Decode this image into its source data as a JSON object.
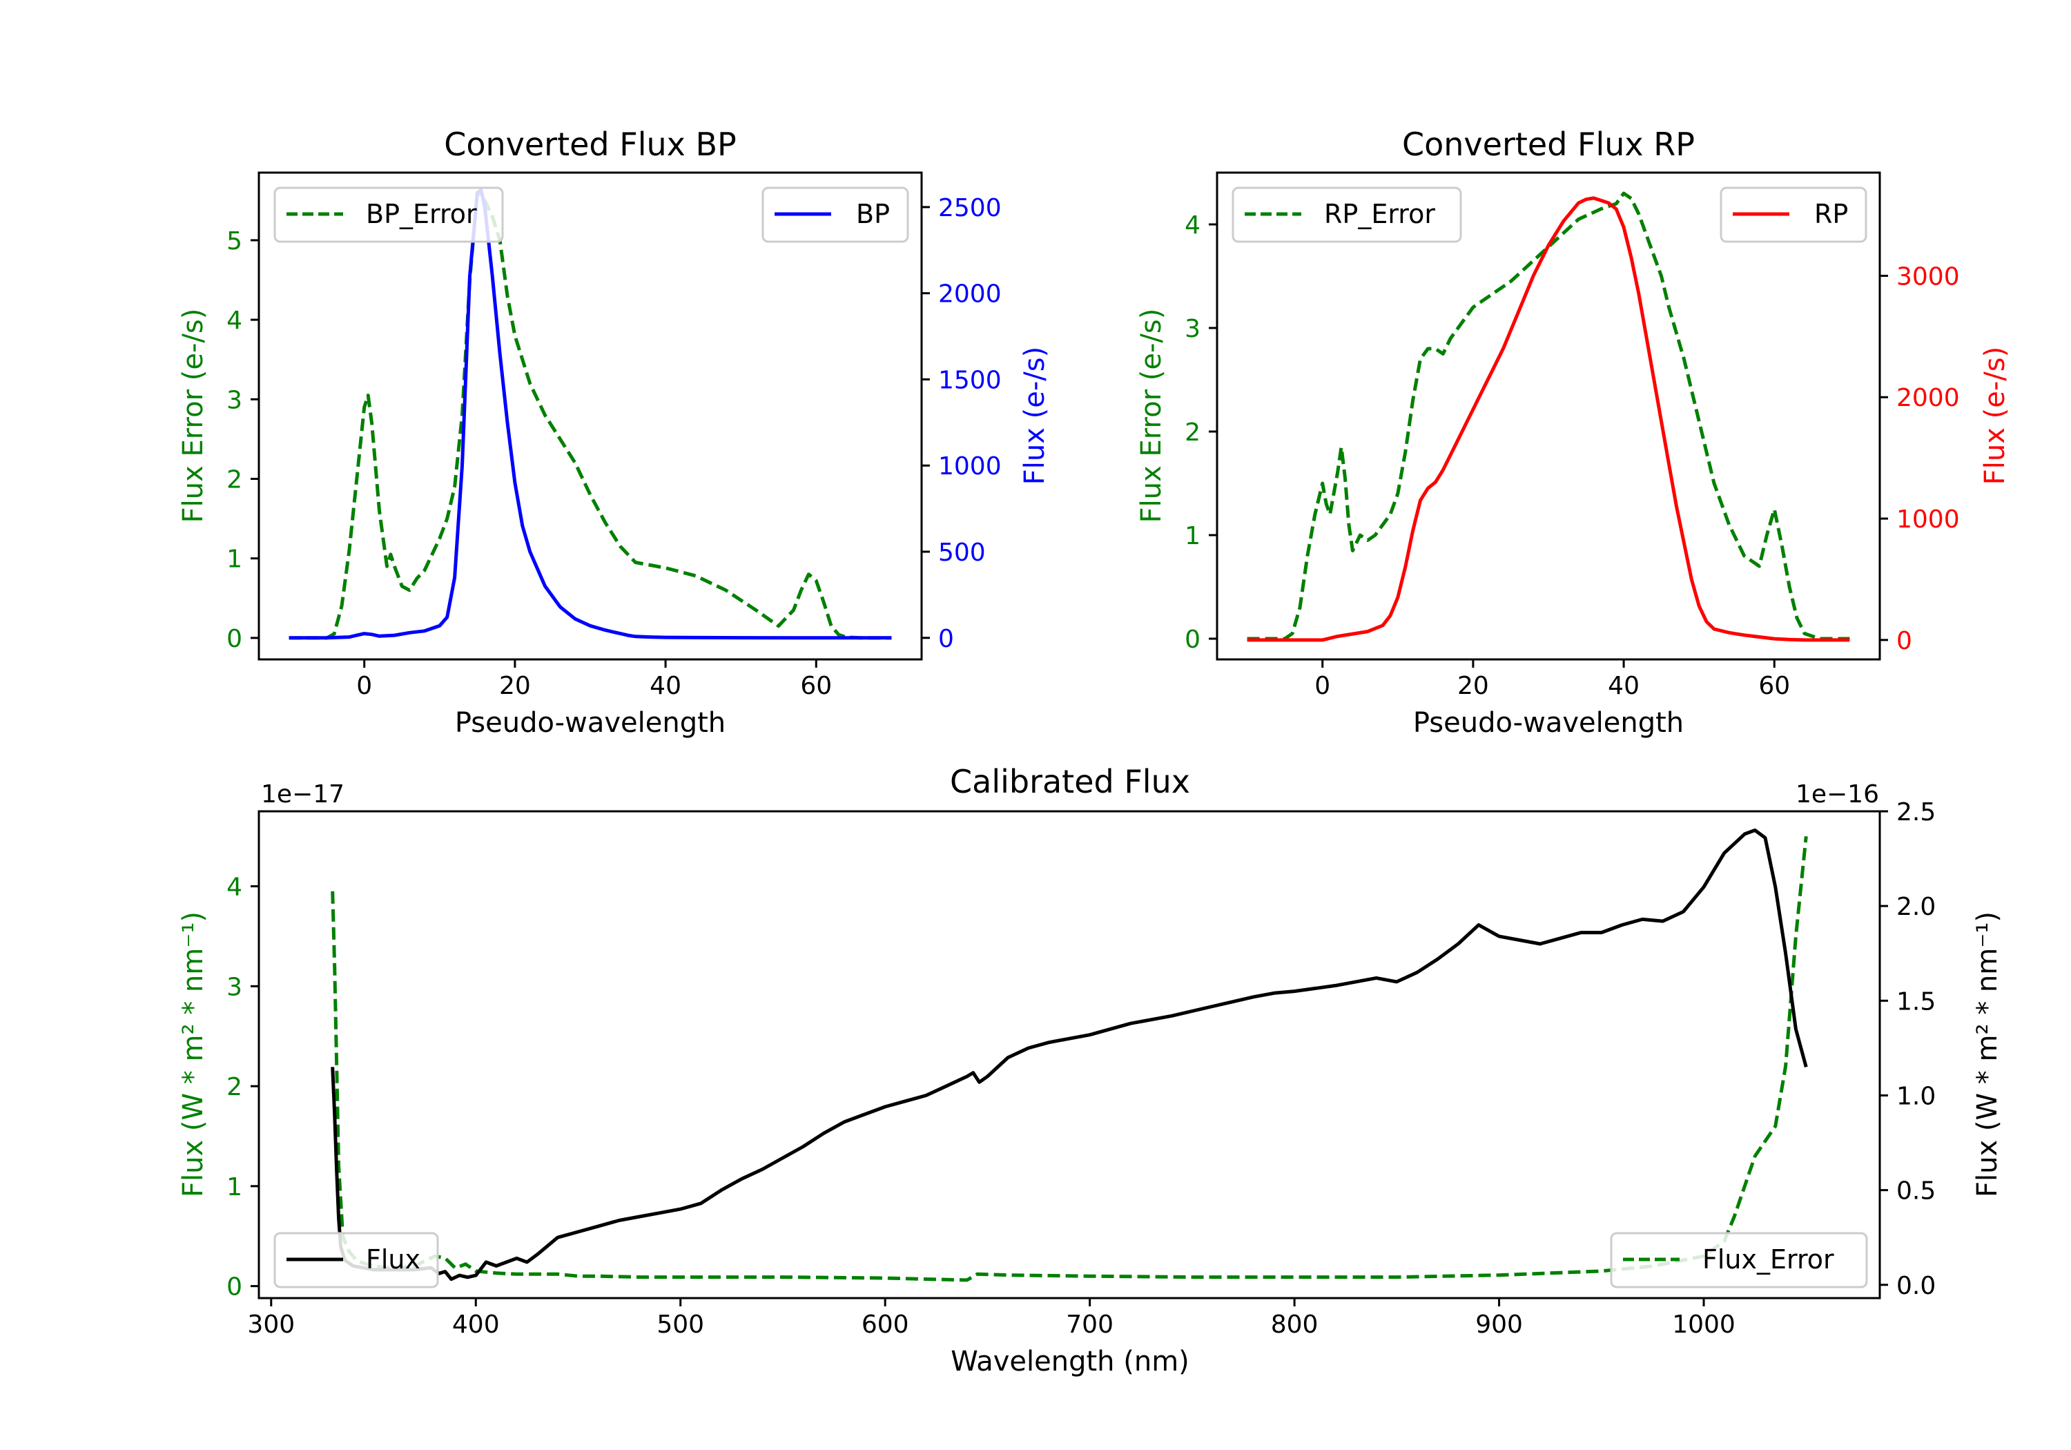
{
  "colors": {
    "bp": "#0000ff",
    "rp": "#ff0000",
    "error": "#008000",
    "flux": "#000000",
    "axes": "#000000",
    "legend_border": "#cccccc"
  },
  "chart_data": [
    {
      "id": "bp",
      "type": "line",
      "title": "Converted Flux BP",
      "xlabel": "Pseudo-wavelength",
      "ylabel_left": "Flux Error (e-/s)",
      "ylabel_right": "Flux (e-/s)",
      "xlim": [
        -14,
        74
      ],
      "ylim_left": [
        -0.27,
        5.85
      ],
      "ylim_right": [
        -125,
        2700
      ],
      "xticks": [
        0,
        20,
        40,
        60
      ],
      "xtick_labels": [
        "0",
        "20",
        "40",
        "60"
      ],
      "yticks_left": [
        0,
        1,
        2,
        3,
        4,
        5
      ],
      "ytick_labels_left": [
        "0",
        "1",
        "2",
        "3",
        "4",
        "5"
      ],
      "yticks_right": [
        0,
        500,
        1000,
        1500,
        2000,
        2500
      ],
      "ytick_labels_right": [
        "0",
        "500",
        "1000",
        "1500",
        "2000",
        "2500"
      ],
      "legend_left": "BP_Error",
      "legend_right": "BP",
      "series": [
        {
          "name": "BP_Error",
          "axis": "left",
          "style": "dashed",
          "color_key": "error",
          "x": [
            -10,
            -5,
            -4,
            -3,
            -2,
            -1,
            0,
            0.5,
            1,
            2,
            3,
            3.5,
            4,
            5,
            6,
            7,
            8,
            9,
            10,
            11,
            12,
            13,
            14,
            15,
            16,
            17,
            18,
            19,
            20,
            21,
            22,
            24,
            26,
            28,
            30,
            32,
            34,
            36,
            40,
            44,
            48,
            52,
            55,
            57,
            58,
            59,
            60,
            61,
            62,
            63,
            64,
            66,
            68,
            70
          ],
          "y": [
            0,
            0,
            0.05,
            0.4,
            1.1,
            2.0,
            2.9,
            3.05,
            2.7,
            1.6,
            0.9,
            1.05,
            0.9,
            0.65,
            0.6,
            0.75,
            0.85,
            1.05,
            1.25,
            1.5,
            1.9,
            2.8,
            4.5,
            5.6,
            5.5,
            5.3,
            5.0,
            4.3,
            3.8,
            3.5,
            3.2,
            2.8,
            2.5,
            2.2,
            1.8,
            1.45,
            1.15,
            0.95,
            0.88,
            0.78,
            0.6,
            0.35,
            0.15,
            0.35,
            0.6,
            0.8,
            0.72,
            0.45,
            0.15,
            0.04,
            0.01,
            0,
            0,
            0
          ]
        },
        {
          "name": "BP",
          "axis": "right",
          "style": "solid",
          "color_key": "bp",
          "x": [
            -10,
            -5,
            -2,
            0,
            1,
            2,
            4,
            6,
            8,
            10,
            11,
            12,
            13,
            14,
            15,
            15.5,
            16,
            17,
            18,
            19,
            20,
            21,
            22,
            24,
            26,
            28,
            30,
            32,
            34,
            35,
            36,
            38,
            40,
            50,
            60,
            70
          ],
          "y": [
            0,
            0,
            5,
            25,
            20,
            10,
            15,
            30,
            40,
            70,
            120,
            350,
            1000,
            2100,
            2580,
            2600,
            2500,
            2100,
            1650,
            1250,
            900,
            650,
            500,
            300,
            180,
            110,
            70,
            45,
            25,
            15,
            8,
            5,
            3,
            1,
            0,
            0
          ]
        }
      ]
    },
    {
      "id": "rp",
      "type": "line",
      "title": "Converted Flux RP",
      "xlabel": "Pseudo-wavelength",
      "ylabel_left": "Flux Error (e-/s)",
      "ylabel_right": "Flux (e-/s)",
      "xlim": [
        -14,
        74
      ],
      "ylim_left": [
        -0.2,
        4.5
      ],
      "ylim_right": [
        -160,
        3850
      ],
      "xticks": [
        0,
        20,
        40,
        60
      ],
      "xtick_labels": [
        "0",
        "20",
        "40",
        "60"
      ],
      "yticks_left": [
        0,
        1,
        2,
        3,
        4
      ],
      "ytick_labels_left": [
        "0",
        "1",
        "2",
        "3",
        "4"
      ],
      "yticks_right": [
        0,
        1000,
        2000,
        3000
      ],
      "ytick_labels_right": [
        "0",
        "1000",
        "2000",
        "3000"
      ],
      "legend_left": "RP_Error",
      "legend_right": "RP",
      "series": [
        {
          "name": "RP_Error",
          "axis": "left",
          "style": "dashed",
          "color_key": "error",
          "x": [
            -10,
            -5,
            -4,
            -3,
            -2,
            -1,
            0,
            0.5,
            1,
            2,
            2.5,
            3,
            3.5,
            4,
            5,
            6,
            7,
            8,
            9,
            10,
            11,
            12,
            13,
            14,
            15,
            16,
            17,
            18,
            19,
            20,
            22,
            25,
            28,
            31,
            34,
            37,
            39,
            40,
            41,
            42,
            43,
            44,
            45,
            46,
            48,
            50,
            52,
            54,
            56,
            57,
            58,
            59,
            60,
            61,
            62,
            63,
            64,
            66,
            68,
            70
          ],
          "y": [
            0,
            0,
            0.05,
            0.3,
            0.8,
            1.2,
            1.5,
            1.3,
            1.2,
            1.6,
            1.85,
            1.55,
            1.1,
            0.85,
            1.0,
            0.95,
            1.0,
            1.1,
            1.2,
            1.4,
            1.8,
            2.3,
            2.7,
            2.8,
            2.8,
            2.75,
            2.9,
            3.0,
            3.1,
            3.2,
            3.3,
            3.45,
            3.65,
            3.85,
            4.05,
            4.15,
            4.2,
            4.3,
            4.25,
            4.1,
            3.9,
            3.7,
            3.5,
            3.2,
            2.7,
            2.1,
            1.5,
            1.1,
            0.8,
            0.75,
            0.7,
            1.0,
            1.25,
            0.9,
            0.5,
            0.2,
            0.05,
            0,
            0,
            0
          ]
        },
        {
          "name": "RP",
          "axis": "right",
          "style": "solid",
          "color_key": "rp",
          "x": [
            -10,
            -5,
            0,
            2,
            4,
            6,
            8,
            9,
            10,
            11,
            12,
            13,
            14,
            15,
            16,
            18,
            20,
            22,
            24,
            26,
            28,
            30,
            32,
            34,
            35,
            36,
            37,
            38,
            39,
            40,
            41,
            42,
            43,
            44,
            45,
            46,
            47,
            48,
            49,
            50,
            51,
            52,
            54,
            56,
            58,
            60,
            62,
            64,
            70
          ],
          "y": [
            0,
            0,
            0,
            30,
            50,
            70,
            120,
            200,
            350,
            600,
            900,
            1150,
            1250,
            1300,
            1400,
            1650,
            1900,
            2150,
            2400,
            2700,
            3000,
            3250,
            3450,
            3600,
            3630,
            3640,
            3620,
            3600,
            3550,
            3400,
            3150,
            2850,
            2500,
            2150,
            1800,
            1450,
            1100,
            800,
            500,
            280,
            150,
            90,
            60,
            40,
            25,
            10,
            3,
            0,
            0
          ]
        }
      ]
    },
    {
      "id": "cal",
      "type": "line",
      "title": "Calibrated Flux",
      "xlabel": "Wavelength (nm)",
      "ylabel_left": "Flux (W * m² * nm⁻¹)",
      "ylabel_right": "Flux (W * m² * nm⁻¹)",
      "offset_left": "1e−17",
      "offset_right": "1e−16",
      "xlim": [
        294,
        1086
      ],
      "ylim_left": [
        -0.12,
        4.75
      ],
      "ylim_right": [
        -0.07,
        2.5
      ],
      "xticks": [
        300,
        400,
        500,
        600,
        700,
        800,
        900,
        1000
      ],
      "xtick_labels": [
        "300",
        "400",
        "500",
        "600",
        "700",
        "800",
        "900",
        "1000"
      ],
      "yticks_left": [
        0,
        1,
        2,
        3,
        4
      ],
      "ytick_labels_left": [
        "0",
        "1",
        "2",
        "3",
        "4"
      ],
      "yticks_right": [
        0,
        0.5,
        1,
        1.5,
        2,
        2.5
      ],
      "ytick_labels_right": [
        "0.0",
        "0.5",
        "1.0",
        "1.5",
        "2.0",
        "2.5"
      ],
      "legend_left": "Flux",
      "legend_right": "Flux_Error",
      "series": [
        {
          "name": "Flux_Error",
          "axis": "left",
          "style": "dashed",
          "color_key": "error",
          "x": [
            330,
            331,
            332,
            333,
            335,
            338,
            342,
            350,
            360,
            370,
            380,
            385,
            390,
            395,
            400,
            410,
            420,
            430,
            440,
            450,
            460,
            480,
            500,
            550,
            600,
            620,
            640,
            645,
            660,
            700,
            750,
            800,
            850,
            900,
            950,
            975,
            1000,
            1010,
            1015,
            1020,
            1025,
            1030,
            1035,
            1040,
            1045,
            1050
          ],
          "y": [
            3.95,
            3.2,
            2.2,
            1.2,
            0.5,
            0.35,
            0.25,
            0.2,
            0.18,
            0.2,
            0.3,
            0.28,
            0.18,
            0.22,
            0.15,
            0.13,
            0.12,
            0.12,
            0.12,
            0.1,
            0.1,
            0.09,
            0.09,
            0.09,
            0.08,
            0.07,
            0.06,
            0.12,
            0.11,
            0.1,
            0.09,
            0.09,
            0.09,
            0.11,
            0.15,
            0.2,
            0.3,
            0.45,
            0.7,
            1.0,
            1.3,
            1.45,
            1.6,
            2.2,
            3.5,
            4.5
          ]
        },
        {
          "name": "Flux",
          "axis": "right",
          "style": "solid",
          "color_key": "flux",
          "x": [
            330,
            331,
            332,
            333,
            334,
            336,
            340,
            345,
            350,
            360,
            370,
            378,
            382,
            385,
            388,
            392,
            396,
            400,
            405,
            410,
            415,
            420,
            425,
            430,
            440,
            450,
            460,
            470,
            480,
            490,
            500,
            510,
            520,
            530,
            540,
            550,
            560,
            570,
            580,
            590,
            600,
            610,
            620,
            630,
            640,
            643,
            646,
            650,
            660,
            670,
            680,
            700,
            720,
            740,
            760,
            780,
            790,
            800,
            820,
            840,
            850,
            860,
            870,
            880,
            890,
            900,
            910,
            920,
            930,
            940,
            950,
            960,
            970,
            980,
            990,
            1000,
            1010,
            1020,
            1025,
            1030,
            1035,
            1040,
            1045,
            1050
          ],
          "y": [
            1.15,
            0.9,
            0.6,
            0.35,
            0.2,
            0.13,
            0.1,
            0.09,
            0.08,
            0.08,
            0.08,
            0.09,
            0.06,
            0.07,
            0.03,
            0.05,
            0.04,
            0.05,
            0.12,
            0.1,
            0.12,
            0.14,
            0.12,
            0.16,
            0.25,
            0.28,
            0.31,
            0.34,
            0.36,
            0.38,
            0.4,
            0.43,
            0.5,
            0.56,
            0.61,
            0.67,
            0.73,
            0.8,
            0.86,
            0.9,
            0.94,
            0.97,
            1.0,
            1.05,
            1.1,
            1.12,
            1.07,
            1.1,
            1.2,
            1.25,
            1.28,
            1.32,
            1.38,
            1.42,
            1.47,
            1.52,
            1.54,
            1.55,
            1.58,
            1.62,
            1.6,
            1.65,
            1.72,
            1.8,
            1.9,
            1.84,
            1.82,
            1.8,
            1.83,
            1.86,
            1.86,
            1.9,
            1.93,
            1.92,
            1.97,
            2.1,
            2.28,
            2.38,
            2.4,
            2.36,
            2.1,
            1.75,
            1.35,
            1.15
          ]
        }
      ]
    }
  ]
}
